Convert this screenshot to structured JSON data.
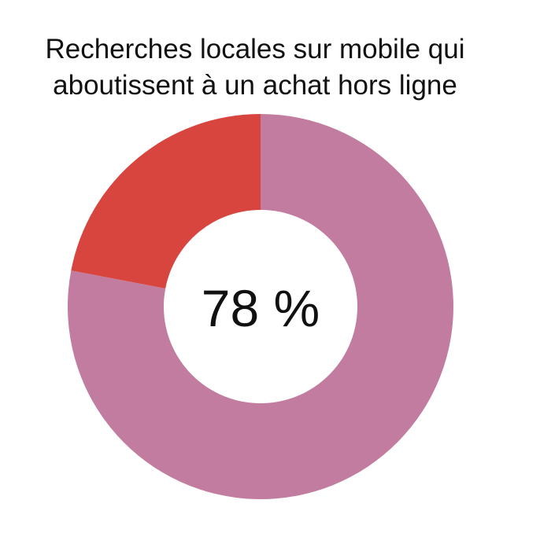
{
  "chart_data": {
    "type": "pie",
    "title_lines": [
      "Recherches locales sur mobile qui",
      "aboutissent à un achat hors ligne"
    ],
    "center_label": "78 %",
    "slices": [
      {
        "label": "",
        "value": 78,
        "color": "#c27c9f"
      },
      {
        "label": "",
        "value": 22,
        "color": "#d8453f"
      }
    ],
    "donut": true,
    "legend": "none"
  }
}
